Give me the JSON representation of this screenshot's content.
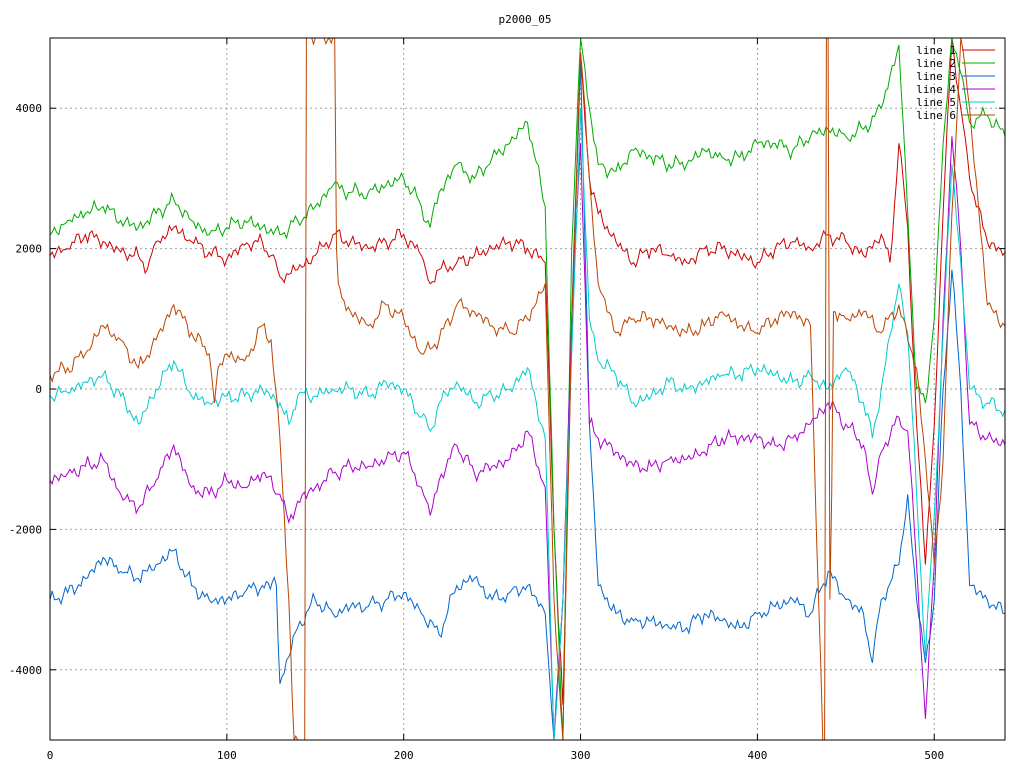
{
  "chart_data": {
    "type": "line",
    "title": "p2000_05",
    "xlim": [
      0,
      540
    ],
    "ylim": [
      -5000,
      5000
    ],
    "x_ticks": [
      0,
      100,
      200,
      300,
      400,
      500
    ],
    "y_ticks": [
      -4000,
      -2000,
      0,
      2000,
      4000
    ],
    "x_tick_labels": [
      "0",
      "100",
      "200",
      "300",
      "400",
      "500"
    ],
    "y_tick_labels": [
      "-4000",
      "-2000",
      "0",
      "2000",
      "4000"
    ],
    "grid": true,
    "legend": "top-right",
    "series": [
      {
        "name": "line 1",
        "color": "#cc0000",
        "x": [
          0,
          10,
          20,
          30,
          40,
          50,
          55,
          60,
          70,
          80,
          90,
          100,
          110,
          120,
          125,
          130,
          140,
          150,
          160,
          170,
          180,
          190,
          200,
          210,
          215,
          220,
          230,
          240,
          250,
          260,
          270,
          280,
          285,
          290,
          295,
          300,
          305,
          310,
          320,
          330,
          340,
          350,
          360,
          370,
          380,
          390,
          400,
          410,
          420,
          430,
          440,
          450,
          460,
          470,
          475,
          480,
          485,
          490,
          495,
          500,
          505,
          510,
          515,
          520,
          530,
          540
        ],
        "y": [
          1900,
          2000,
          2200,
          2100,
          1950,
          1900,
          1700,
          2100,
          2300,
          2100,
          1950,
          1850,
          2050,
          2100,
          1900,
          1600,
          1700,
          1900,
          2200,
          2100,
          2000,
          2100,
          2200,
          1900,
          1500,
          1700,
          1800,
          1900,
          2000,
          2100,
          2000,
          1800,
          -2000,
          -4500,
          800,
          4700,
          3000,
          2500,
          2100,
          1800,
          2000,
          1900,
          1800,
          2000,
          2000,
          1900,
          1800,
          2000,
          2100,
          2000,
          2200,
          2100,
          1900,
          2200,
          1800,
          3500,
          2300,
          -500,
          -2500,
          -500,
          2500,
          5000,
          4000,
          3000,
          2100,
          1950
        ]
      },
      {
        "name": "line 2",
        "color": "#00aa00",
        "x": [
          0,
          10,
          20,
          30,
          40,
          50,
          60,
          70,
          80,
          90,
          100,
          110,
          120,
          130,
          140,
          150,
          160,
          170,
          180,
          190,
          200,
          210,
          215,
          220,
          230,
          240,
          250,
          260,
          270,
          280,
          285,
          290,
          295,
          300,
          305,
          310,
          320,
          330,
          340,
          350,
          360,
          370,
          380,
          390,
          400,
          410,
          420,
          430,
          440,
          450,
          460,
          470,
          480,
          485,
          490,
          495,
          500,
          505,
          510,
          515,
          520,
          530,
          540
        ],
        "y": [
          2200,
          2400,
          2500,
          2600,
          2400,
          2300,
          2500,
          2700,
          2400,
          2200,
          2300,
          2400,
          2300,
          2200,
          2400,
          2600,
          2900,
          2800,
          2800,
          2900,
          3000,
          2600,
          2300,
          2800,
          3200,
          3000,
          3300,
          3500,
          3800,
          2600,
          -2000,
          -5000,
          2000,
          5000,
          4000,
          3200,
          3100,
          3400,
          3300,
          3200,
          3200,
          3400,
          3300,
          3300,
          3500,
          3500,
          3400,
          3600,
          3700,
          3600,
          3700,
          4000,
          4900,
          2500,
          0,
          -200,
          1000,
          3500,
          5000,
          4500,
          3800,
          3900,
          3600
        ]
      },
      {
        "name": "line 3",
        "color": "#0066cc",
        "x": [
          0,
          10,
          20,
          30,
          40,
          50,
          60,
          70,
          80,
          90,
          100,
          110,
          120,
          128,
          130,
          140,
          150,
          160,
          170,
          180,
          190,
          200,
          210,
          220,
          230,
          240,
          250,
          260,
          270,
          280,
          285,
          290,
          295,
          300,
          305,
          310,
          320,
          330,
          340,
          350,
          360,
          370,
          380,
          390,
          400,
          410,
          420,
          430,
          440,
          450,
          460,
          465,
          470,
          480,
          485,
          490,
          495,
          500,
          505,
          510,
          515,
          520,
          530,
          540
        ],
        "y": [
          -3000,
          -2900,
          -2700,
          -2400,
          -2600,
          -2700,
          -2500,
          -2300,
          -2800,
          -3000,
          -3000,
          -2900,
          -2800,
          -2800,
          -4200,
          -3400,
          -3000,
          -3200,
          -3100,
          -3100,
          -3000,
          -2900,
          -3200,
          -3500,
          -2800,
          -2700,
          -3000,
          -2900,
          -2800,
          -3200,
          -5000,
          -3000,
          1000,
          4700,
          -500,
          -2800,
          -3200,
          -3300,
          -3300,
          -3400,
          -3400,
          -3200,
          -3300,
          -3400,
          -3200,
          -3100,
          -3000,
          -3200,
          -2600,
          -3000,
          -3200,
          -3900,
          -3000,
          -2500,
          -1500,
          -3000,
          -3900,
          -3000,
          0,
          1700,
          0,
          -2800,
          -3000,
          -3200
        ]
      },
      {
        "name": "line 4",
        "color": "#aa00cc",
        "x": [
          0,
          10,
          20,
          30,
          40,
          50,
          60,
          70,
          80,
          90,
          100,
          110,
          120,
          130,
          135,
          140,
          150,
          160,
          170,
          180,
          190,
          200,
          210,
          215,
          220,
          230,
          240,
          250,
          260,
          270,
          280,
          285,
          290,
          295,
          300,
          305,
          310,
          320,
          330,
          340,
          350,
          360,
          370,
          380,
          390,
          400,
          410,
          420,
          430,
          440,
          450,
          460,
          465,
          470,
          480,
          485,
          490,
          495,
          500,
          505,
          510,
          515,
          520,
          530,
          540
        ],
        "y": [
          -1300,
          -1200,
          -1100,
          -1000,
          -1500,
          -1700,
          -1300,
          -800,
          -1400,
          -1500,
          -1300,
          -1400,
          -1200,
          -1500,
          -1900,
          -1600,
          -1400,
          -1200,
          -1100,
          -1100,
          -1000,
          -900,
          -1400,
          -1800,
          -1300,
          -800,
          -1200,
          -1100,
          -1000,
          -600,
          -1400,
          -5000,
          -3000,
          1000,
          3500,
          -500,
          -700,
          -900,
          -1100,
          -1100,
          -1000,
          -1000,
          -900,
          -700,
          -700,
          -700,
          -800,
          -700,
          -500,
          -200,
          -500,
          -800,
          -1500,
          -900,
          -400,
          -600,
          -2500,
          -4700,
          -2500,
          1000,
          3600,
          2000,
          -500,
          -700,
          -800
        ]
      },
      {
        "name": "line 5",
        "color": "#00cccc",
        "x": [
          0,
          10,
          20,
          30,
          40,
          50,
          60,
          70,
          80,
          90,
          100,
          110,
          120,
          130,
          135,
          140,
          150,
          160,
          170,
          180,
          190,
          200,
          210,
          215,
          220,
          230,
          240,
          250,
          260,
          270,
          280,
          285,
          290,
          295,
          300,
          305,
          310,
          320,
          330,
          340,
          350,
          360,
          370,
          380,
          390,
          400,
          410,
          420,
          430,
          440,
          450,
          460,
          465,
          470,
          480,
          485,
          490,
          495,
          500,
          505,
          510,
          515,
          520,
          530,
          540
        ],
        "y": [
          -100,
          -50,
          100,
          200,
          -100,
          -500,
          0,
          400,
          -100,
          -200,
          -100,
          -100,
          0,
          -200,
          -500,
          -100,
          -100,
          0,
          0,
          -100,
          100,
          0,
          -400,
          -600,
          -200,
          100,
          -200,
          -100,
          0,
          300,
          -700,
          -5000,
          -3000,
          500,
          4000,
          1000,
          400,
          200,
          -200,
          -100,
          100,
          0,
          100,
          200,
          200,
          300,
          200,
          100,
          200,
          0,
          300,
          -200,
          -700,
          0,
          1500,
          800,
          -1500,
          -3800,
          -1800,
          800,
          3200,
          1800,
          0,
          -200,
          -300
        ]
      },
      {
        "name": "line 6",
        "color": "#bb4400",
        "x": [
          0,
          10,
          20,
          30,
          40,
          50,
          60,
          70,
          80,
          90,
          93,
          95,
          100,
          110,
          120,
          125,
          130,
          135,
          138,
          140,
          141,
          142,
          143,
          144,
          145,
          146,
          147,
          148,
          150,
          155,
          158,
          160,
          161,
          162,
          163,
          165,
          170,
          180,
          190,
          200,
          210,
          220,
          230,
          240,
          250,
          260,
          270,
          280,
          285,
          290,
          295,
          300,
          305,
          310,
          320,
          330,
          340,
          350,
          360,
          370,
          380,
          390,
          400,
          410,
          420,
          430,
          437,
          438,
          439,
          440,
          441,
          442,
          443,
          444,
          450,
          460,
          470,
          480,
          485,
          490,
          495,
          500,
          505,
          510,
          515,
          520,
          530,
          540
        ],
        "y": [
          200,
          300,
          500,
          900,
          700,
          300,
          700,
          1200,
          800,
          500,
          -200,
          300,
          500,
          400,
          900,
          700,
          -700,
          -3000,
          -5000,
          -5000,
          -5000,
          -5000,
          -5000,
          -5000,
          5000,
          5000,
          5000,
          5000,
          5000,
          5000,
          5000,
          5000,
          5000,
          2000,
          1500,
          1300,
          1100,
          900,
          1200,
          1000,
          500,
          700,
          1200,
          1100,
          900,
          800,
          1000,
          1500,
          -3000,
          -5000,
          1000,
          4800,
          3000,
          1500,
          800,
          1000,
          1000,
          900,
          800,
          900,
          1100,
          900,
          800,
          1000,
          1100,
          900,
          -5000,
          -5000,
          5000,
          5000,
          -3000,
          -1500,
          1100,
          1100,
          1000,
          1100,
          800,
          1200,
          700,
          300,
          -1000,
          -2500,
          -1000,
          2500,
          5000,
          4000,
          1200,
          900
        ]
      }
    ]
  }
}
